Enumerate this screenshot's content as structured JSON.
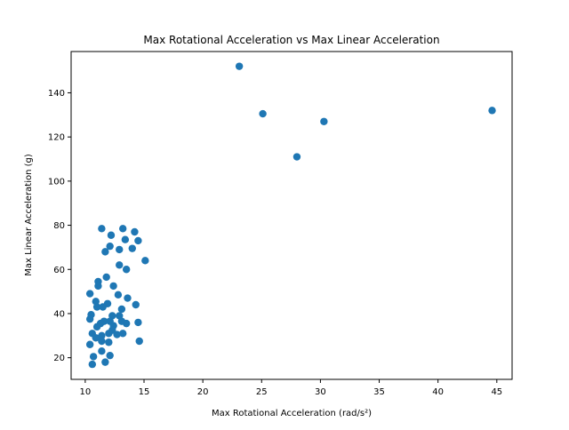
{
  "chart_data": {
    "type": "scatter",
    "title": "Max Rotational Acceleration vs Max Linear Acceleration",
    "xlabel": "Max Rotational Acceleration (rad/s²)",
    "ylabel": "Max Linear Acceleration (g)",
    "xlim": [
      8.8,
      46.3
    ],
    "ylim": [
      10.2,
      158.7
    ],
    "xticks": [
      10,
      15,
      20,
      25,
      30,
      35,
      40,
      45
    ],
    "yticks": [
      20,
      40,
      60,
      80,
      100,
      120,
      140
    ],
    "grid": false,
    "legend": "none",
    "marker_color": "#1f77b4",
    "points": [
      {
        "x": 23.1,
        "y": 152
      },
      {
        "x": 25.1,
        "y": 130.5
      },
      {
        "x": 30.3,
        "y": 127
      },
      {
        "x": 44.6,
        "y": 132
      },
      {
        "x": 28.0,
        "y": 111
      },
      {
        "x": 11.4,
        "y": 78.5
      },
      {
        "x": 13.2,
        "y": 78.5
      },
      {
        "x": 14.2,
        "y": 77
      },
      {
        "x": 12.2,
        "y": 75.5
      },
      {
        "x": 13.4,
        "y": 73.5
      },
      {
        "x": 14.5,
        "y": 73
      },
      {
        "x": 12.1,
        "y": 70.5
      },
      {
        "x": 12.9,
        "y": 69
      },
      {
        "x": 14.0,
        "y": 69.5
      },
      {
        "x": 11.7,
        "y": 68
      },
      {
        "x": 15.1,
        "y": 64
      },
      {
        "x": 12.9,
        "y": 62
      },
      {
        "x": 13.5,
        "y": 60
      },
      {
        "x": 11.8,
        "y": 56.5
      },
      {
        "x": 11.1,
        "y": 54.5
      },
      {
        "x": 11.1,
        "y": 52.5
      },
      {
        "x": 12.4,
        "y": 52.5
      },
      {
        "x": 10.4,
        "y": 49
      },
      {
        "x": 12.8,
        "y": 48.5
      },
      {
        "x": 13.6,
        "y": 47
      },
      {
        "x": 10.9,
        "y": 45.5
      },
      {
        "x": 14.3,
        "y": 44
      },
      {
        "x": 11.9,
        "y": 44.5
      },
      {
        "x": 11.0,
        "y": 43
      },
      {
        "x": 11.5,
        "y": 43
      },
      {
        "x": 13.1,
        "y": 42
      },
      {
        "x": 10.5,
        "y": 39.5
      },
      {
        "x": 12.3,
        "y": 39
      },
      {
        "x": 12.9,
        "y": 39
      },
      {
        "x": 10.4,
        "y": 37.5
      },
      {
        "x": 11.6,
        "y": 36.5
      },
      {
        "x": 12.1,
        "y": 36.5
      },
      {
        "x": 13.1,
        "y": 36.5
      },
      {
        "x": 14.5,
        "y": 36
      },
      {
        "x": 11.3,
        "y": 35.5
      },
      {
        "x": 13.5,
        "y": 35.5
      },
      {
        "x": 12.4,
        "y": 34.5
      },
      {
        "x": 11.0,
        "y": 34
      },
      {
        "x": 12.3,
        "y": 32.5
      },
      {
        "x": 10.6,
        "y": 31
      },
      {
        "x": 12.0,
        "y": 31
      },
      {
        "x": 12.7,
        "y": 30.5
      },
      {
        "x": 13.2,
        "y": 31
      },
      {
        "x": 11.4,
        "y": 30
      },
      {
        "x": 10.9,
        "y": 29
      },
      {
        "x": 11.4,
        "y": 27.5
      },
      {
        "x": 12.0,
        "y": 27
      },
      {
        "x": 14.6,
        "y": 27.5
      },
      {
        "x": 10.4,
        "y": 26
      },
      {
        "x": 11.4,
        "y": 23
      },
      {
        "x": 10.7,
        "y": 20.5
      },
      {
        "x": 12.1,
        "y": 21
      },
      {
        "x": 11.7,
        "y": 18
      },
      {
        "x": 10.6,
        "y": 17
      }
    ]
  }
}
